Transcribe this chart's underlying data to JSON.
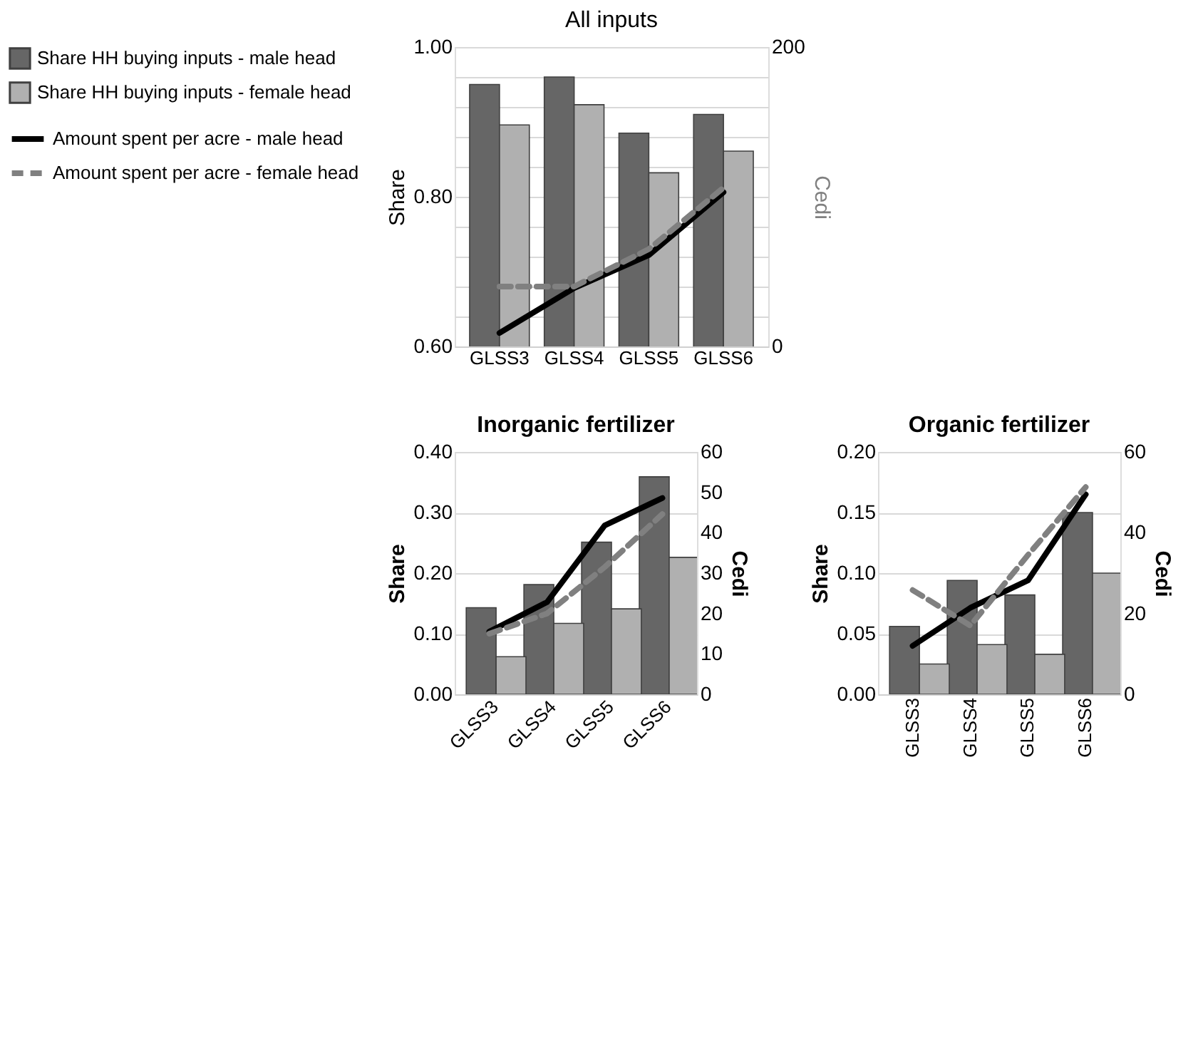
{
  "chart_data": [
    {
      "type": "bar",
      "title": "All inputs",
      "ylabel": "Share",
      "y2label": "Cedi",
      "categories": [
        "GLSS3",
        "GLSS4",
        "GLSS5",
        "GLSS6"
      ],
      "legend": "left",
      "grid": "y",
      "marker": "none",
      "ylim": [
        0.6,
        1.0
      ],
      "yticks": [
        {
          "value": 0.6,
          "label": "0.60"
        },
        {
          "value": 0.64,
          "label": null
        },
        {
          "value": 0.68,
          "label": null
        },
        {
          "value": 0.72,
          "label": null
        },
        {
          "value": 0.76,
          "label": null
        },
        {
          "value": 0.8,
          "label": "0.80"
        },
        {
          "value": 0.84,
          "label": null
        },
        {
          "value": 0.88,
          "label": null
        },
        {
          "value": 0.92,
          "label": null
        },
        {
          "value": 0.96,
          "label": null
        },
        {
          "value": 1.0,
          "label": "1.00"
        }
      ],
      "y2lim": [
        0,
        200
      ],
      "y2ticks": [
        0,
        200
      ],
      "series": [
        {
          "name": "Share HH buying inputs - male head",
          "color": "#666666",
          "values": [
            0.95,
            0.96,
            0.885,
            0.91
          ]
        },
        {
          "name": "Share HH buying inputs - female head",
          "color": "#b0b0b0",
          "values": [
            0.896,
            0.923,
            0.832,
            0.861
          ]
        },
        {
          "name": "Amount spent per acre - male head",
          "type": "line",
          "axis": "y2",
          "color": "#000000",
          "line_style": "solid",
          "values": [
            9,
            39,
            61,
            103
          ]
        },
        {
          "name": "Amount spent per acre - female head",
          "type": "line",
          "axis": "y2",
          "color": "#808080",
          "line_style": "dashed",
          "values": [
            40,
            40,
            65,
            106
          ]
        }
      ]
    },
    {
      "type": "bar",
      "title": "Inorganic fertilizer",
      "ylabel": "Share",
      "y2label": "Cedi",
      "categories": [
        "GLSS3",
        "GLSS4",
        "GLSS5",
        "GLSS6"
      ],
      "legend": false,
      "grid": "y",
      "marker": "none",
      "ylim": [
        0,
        0.4
      ],
      "yticks": [
        {
          "value": 0,
          "label": "0.00"
        },
        {
          "value": 0.1,
          "label": "0.10"
        },
        {
          "value": 0.2,
          "label": "0.20"
        },
        {
          "value": 0.3,
          "label": "0.30"
        },
        {
          "value": 0.4,
          "label": "0.40"
        }
      ],
      "y2lim": [
        0,
        60
      ],
      "y2ticks": [
        0,
        10,
        20,
        30,
        40,
        50,
        60
      ],
      "series": [
        {
          "color": "#666666",
          "values": [
            0.143,
            0.181,
            0.251,
            0.359
          ]
        },
        {
          "color": "#b0b0b0",
          "values": [
            0.062,
            0.117,
            0.141,
            0.226
          ]
        },
        {
          "type": "line",
          "axis": "y2",
          "color": "#000000",
          "line_style": "solid",
          "values": [
            15.5,
            22.8,
            41.8,
            48.6
          ]
        },
        {
          "type": "line",
          "axis": "y2",
          "color": "#808080",
          "line_style": "dashed",
          "values": [
            15,
            20,
            31.5,
            44.6
          ]
        }
      ]
    },
    {
      "type": "bar",
      "title": "Organic fertilizer",
      "ylabel": "Share",
      "y2label": "Cedi",
      "categories": [
        "GLSS3",
        "GLSS4",
        "GLSS5",
        "GLSS6"
      ],
      "legend": false,
      "grid": "y",
      "marker": "none",
      "ylim": [
        0,
        0.2
      ],
      "yticks": [
        {
          "value": 0,
          "label": "0.00"
        },
        {
          "value": 0.05,
          "label": "0.05"
        },
        {
          "value": 0.1,
          "label": "0.10"
        },
        {
          "value": 0.15,
          "label": "0.15"
        },
        {
          "value": 0.2,
          "label": "0.20"
        }
      ],
      "y2lim": [
        0,
        60
      ],
      "y2ticks": [
        0,
        20,
        40,
        60
      ],
      "series": [
        {
          "color": "#666666",
          "values": [
            0.056,
            0.094,
            0.082,
            0.15
          ]
        },
        {
          "color": "#b0b0b0",
          "values": [
            0.025,
            0.041,
            0.033,
            0.1
          ]
        },
        {
          "type": "line",
          "axis": "y2",
          "color": "#000000",
          "line_style": "solid",
          "values": [
            12,
            21.4,
            28.2,
            49.5
          ]
        },
        {
          "type": "line",
          "axis": "y2",
          "color": "#808080",
          "line_style": "dashed",
          "values": [
            25.8,
            17,
            34.5,
            51.3
          ]
        }
      ]
    }
  ]
}
